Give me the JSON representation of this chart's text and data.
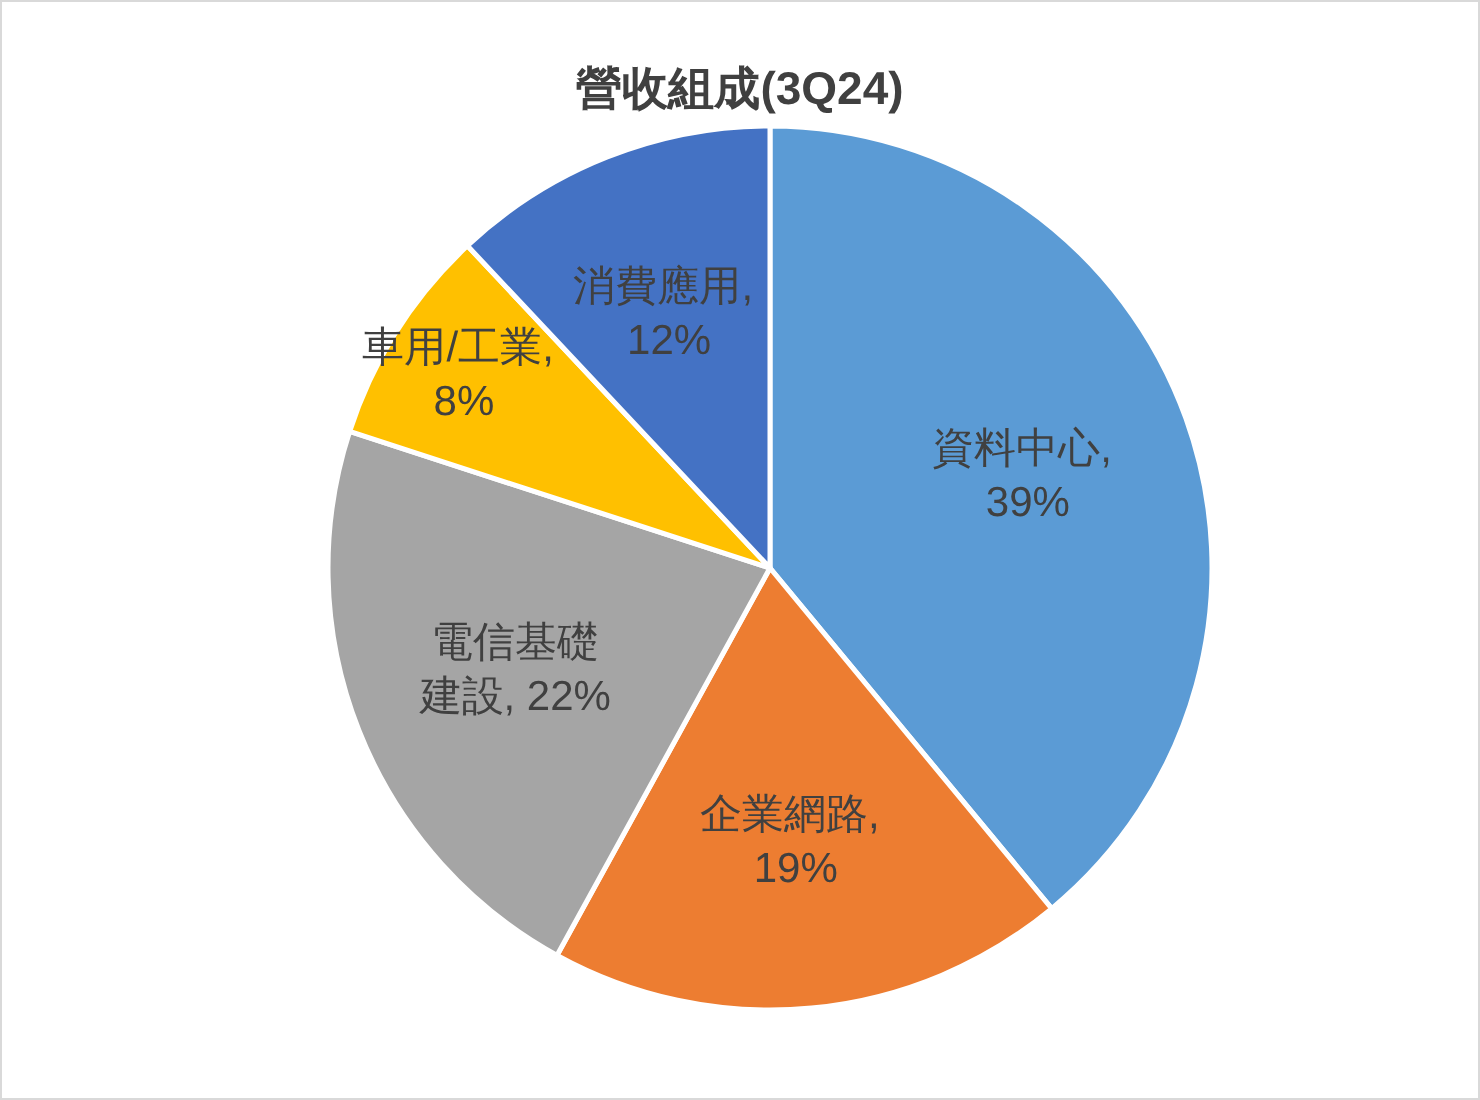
{
  "chart_data": {
    "type": "pie",
    "title": "營收組成(3Q24)",
    "categories": [
      "資料中心",
      "企業網路",
      "電信基礎建設",
      "車用/工業",
      "消費應用"
    ],
    "values": [
      39,
      19,
      22,
      8,
      12
    ],
    "colors": [
      "#5b9bd5",
      "#ed7d31",
      "#a5a5a5",
      "#ffc000",
      "#4472c4"
    ],
    "value_labels": [
      ", 39%",
      ", 19%",
      ", 22%",
      ", 8%",
      ", 12%"
    ],
    "legend": false
  }
}
